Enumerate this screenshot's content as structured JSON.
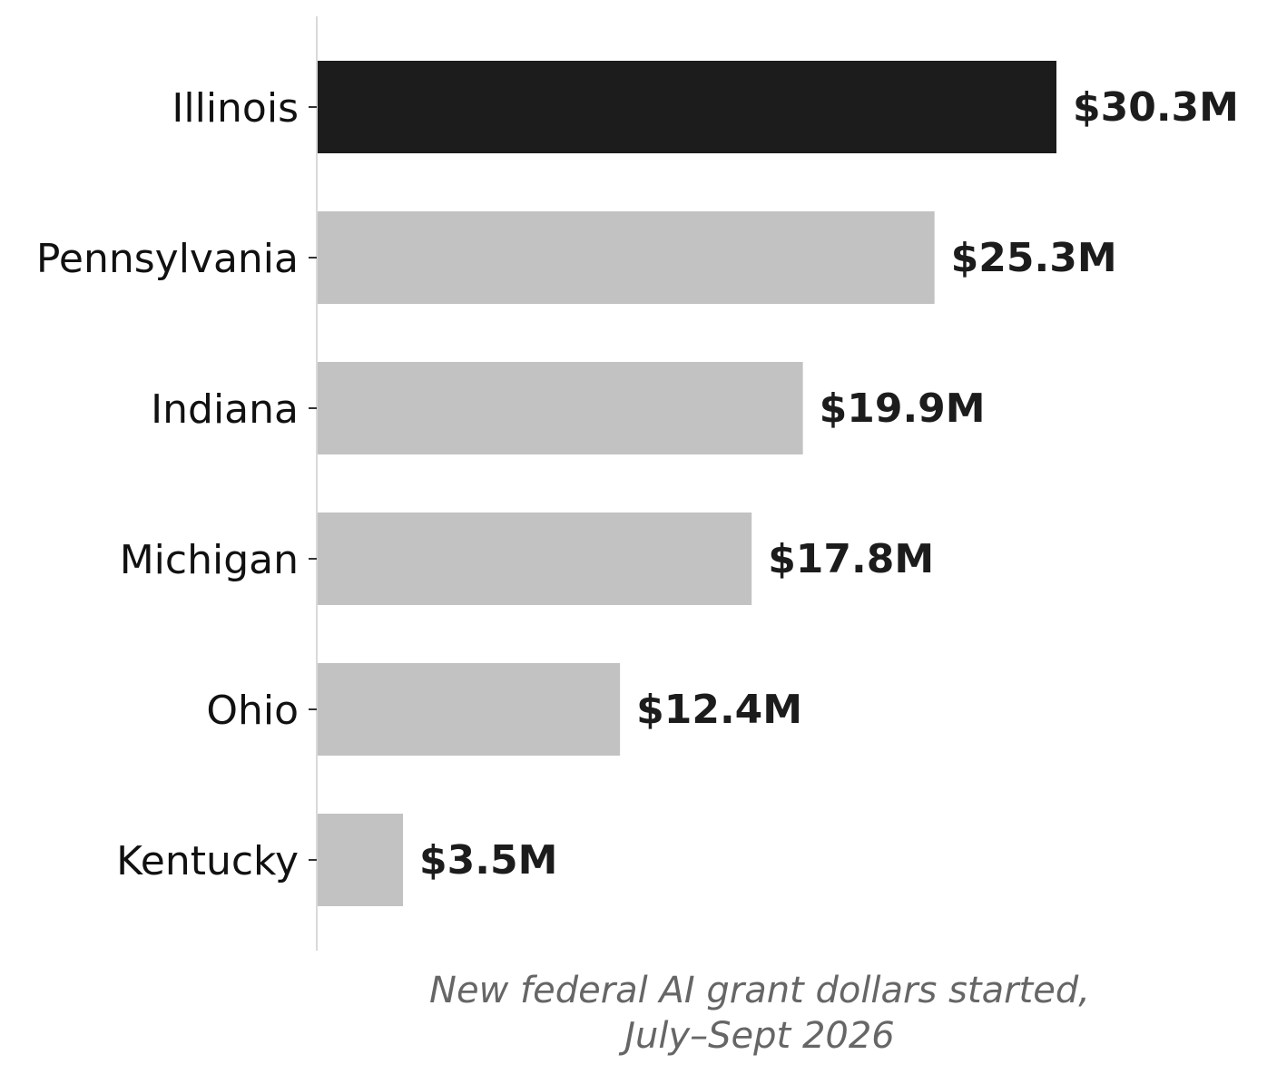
{
  "chart_data": {
    "type": "bar",
    "orientation": "horizontal",
    "categories": [
      "Illinois",
      "Pennsylvania",
      "Indiana",
      "Michigan",
      "Ohio",
      "Kentucky"
    ],
    "values": [
      30.3,
      25.3,
      19.9,
      17.8,
      12.4,
      3.5
    ],
    "value_labels": [
      "$30.3M",
      "$25.3M",
      "$19.9M",
      "$17.8M",
      "$12.4M",
      "$3.5M"
    ],
    "xlabel_lines": [
      "New federal AI grant dollars started,",
      "July–Sept 2026"
    ],
    "title": "",
    "ylabel": "",
    "highlight_index": 0,
    "colors": {
      "highlight": "#1c1c1c",
      "default": "#c2c2c2",
      "axis": "#d9d9d9",
      "tick": "#333333"
    },
    "grid": false,
    "legend": "none"
  }
}
